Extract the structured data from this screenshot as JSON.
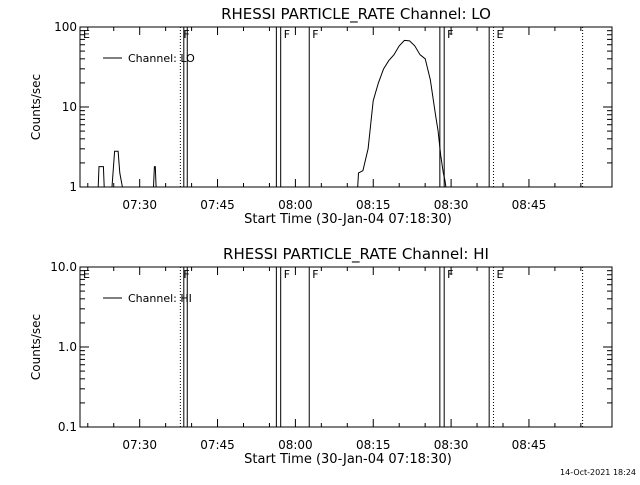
{
  "footer": {
    "date": "14-Oct-2021 18:24"
  },
  "chart_data": [
    {
      "type": "line",
      "title": "RHESSI PARTICLE_RATE Channel: LO",
      "xlabel": "Start Time (30-Jan-04 07:18:30)",
      "ylabel": "Counts/sec",
      "yscale": "log",
      "xlim": [
        "07:18:30",
        "09:01:00"
      ],
      "ylim": [
        1,
        100
      ],
      "xticks": [
        "07:30",
        "07:45",
        "08:00",
        "08:15",
        "08:30",
        "08:45"
      ],
      "yticks": [
        "1",
        "10",
        "100"
      ],
      "legend": "top-left",
      "grid": false,
      "series": [
        {
          "name": "Channel: LO",
          "x": [
            "07:22:00",
            "07:22:10",
            "07:23:00",
            "07:23:10",
            "07:24:40",
            "07:25:10",
            "07:25:50",
            "07:26:10",
            "07:26:20",
            "07:26:40",
            "07:32:40",
            "07:32:50",
            "07:33:00",
            "07:33:10",
            "08:12:00",
            "08:12:10",
            "08:13:00",
            "08:14:00",
            "08:15:00",
            "08:16:00",
            "08:17:00",
            "08:18:00",
            "08:19:00",
            "08:20:00",
            "08:21:00",
            "08:22:00",
            "08:23:00",
            "08:24:00",
            "08:25:00",
            "08:26:00",
            "08:27:00",
            "08:27:30",
            "08:28:00",
            "08:28:30",
            "08:28:50",
            "08:29:00"
          ],
          "y": [
            1,
            1.8,
            1.8,
            1,
            1,
            2.8,
            2.8,
            1.5,
            1.3,
            1,
            1,
            1.8,
            1.8,
            1,
            1,
            1.5,
            1.6,
            3,
            12,
            20,
            30,
            38,
            45,
            58,
            68,
            67,
            58,
            45,
            40,
            22,
            8,
            5,
            2.5,
            1.5,
            1.2,
            1
          ]
        }
      ],
      "annotations": [
        {
          "label": "E",
          "x": "07:18:30",
          "line": "none"
        },
        {
          "label": "F",
          "x": "07:37:50",
          "line": "dotted"
        },
        {
          "label": "F",
          "x": "07:57:10",
          "line": "solid"
        },
        {
          "label": "F",
          "x": "08:02:40",
          "line": "solid"
        },
        {
          "label": "F",
          "x": "08:28:40",
          "line": "solid"
        },
        {
          "label": "E",
          "x": "08:38:10",
          "line": "dotted"
        }
      ],
      "events": [
        {
          "x": "07:38:30",
          "line": "solid"
        },
        {
          "x": "07:39:10",
          "line": "solid"
        },
        {
          "x": "07:56:20",
          "line": "solid"
        },
        {
          "x": "08:27:50",
          "line": "solid"
        },
        {
          "x": "08:37:20",
          "line": "solid"
        },
        {
          "x": "08:55:20",
          "line": "dotted"
        }
      ]
    },
    {
      "type": "line",
      "title": "RHESSI PARTICLE_RATE Channel: HI",
      "xlabel": "Start Time (30-Jan-04 07:18:30)",
      "ylabel": "Counts/sec",
      "yscale": "log",
      "xlim": [
        "07:18:30",
        "09:01:00"
      ],
      "ylim": [
        0.1,
        10
      ],
      "xticks": [
        "07:30",
        "07:45",
        "08:00",
        "08:15",
        "08:30",
        "08:45"
      ],
      "yticks": [
        "0.1",
        "1.0",
        "10.0"
      ],
      "legend": "top-left",
      "grid": false,
      "series": [
        {
          "name": "Channel: HI",
          "x": [],
          "y": []
        }
      ],
      "annotations": [
        {
          "label": "E",
          "x": "07:18:30",
          "line": "none"
        },
        {
          "label": "F",
          "x": "07:37:50",
          "line": "dotted"
        },
        {
          "label": "F",
          "x": "07:57:10",
          "line": "solid"
        },
        {
          "label": "F",
          "x": "08:02:40",
          "line": "solid"
        },
        {
          "label": "F",
          "x": "08:28:40",
          "line": "solid"
        },
        {
          "label": "E",
          "x": "08:38:10",
          "line": "dotted"
        }
      ],
      "events": [
        {
          "x": "07:38:30",
          "line": "solid"
        },
        {
          "x": "07:39:10",
          "line": "solid"
        },
        {
          "x": "07:56:20",
          "line": "solid"
        },
        {
          "x": "08:27:50",
          "line": "solid"
        },
        {
          "x": "08:37:20",
          "line": "solid"
        },
        {
          "x": "08:55:20",
          "line": "dotted"
        }
      ]
    }
  ]
}
